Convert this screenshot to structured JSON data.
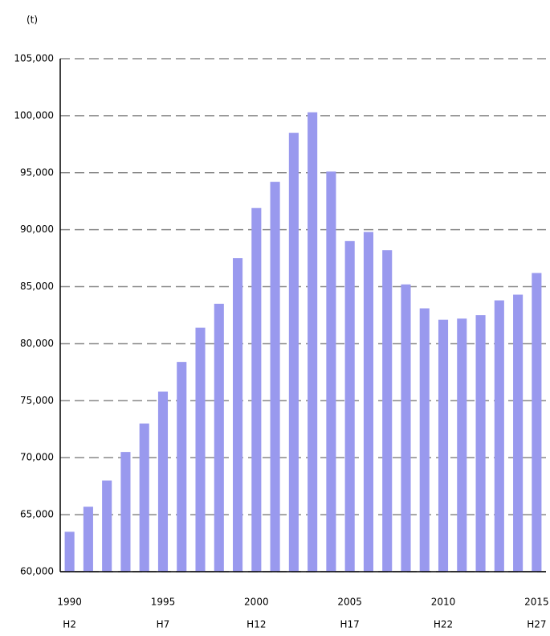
{
  "chart_data": {
    "type": "bar",
    "y_axis_label": "(t)",
    "categories": [
      "1990",
      null,
      null,
      null,
      null,
      "1995",
      null,
      null,
      null,
      null,
      "2000",
      null,
      null,
      null,
      null,
      "2005",
      null,
      null,
      null,
      null,
      "2010",
      null,
      null,
      null,
      null,
      "2015"
    ],
    "category_sublabels": [
      "H2",
      null,
      null,
      null,
      null,
      "H7",
      null,
      null,
      null,
      null,
      "H12",
      null,
      null,
      null,
      null,
      "H17",
      null,
      null,
      null,
      null,
      "H22",
      null,
      null,
      null,
      null,
      "H27"
    ],
    "values": [
      63500,
      65700,
      68000,
      70500,
      73000,
      75800,
      78400,
      81400,
      83500,
      87500,
      91900,
      94200,
      98500,
      100300,
      95100,
      89000,
      89800,
      88200,
      85200,
      83100,
      82100,
      82200,
      82500,
      83800,
      84300,
      86200
    ],
    "color": "#9999ee",
    "ylim": [
      60000,
      105000
    ],
    "yticks": [
      {
        "value": 60000,
        "label": "60,000"
      },
      {
        "value": 65000,
        "label": "65,000"
      },
      {
        "value": 70000,
        "label": "70,000"
      },
      {
        "value": 75000,
        "label": "75,000"
      },
      {
        "value": 80000,
        "label": "80,000"
      },
      {
        "value": 85000,
        "label": "85,000"
      },
      {
        "value": 90000,
        "label": "90,000"
      },
      {
        "value": 95000,
        "label": "95,000"
      },
      {
        "value": 100000,
        "label": "100,000"
      },
      {
        "value": 105000,
        "label": "105,000"
      }
    ],
    "grid": true
  }
}
